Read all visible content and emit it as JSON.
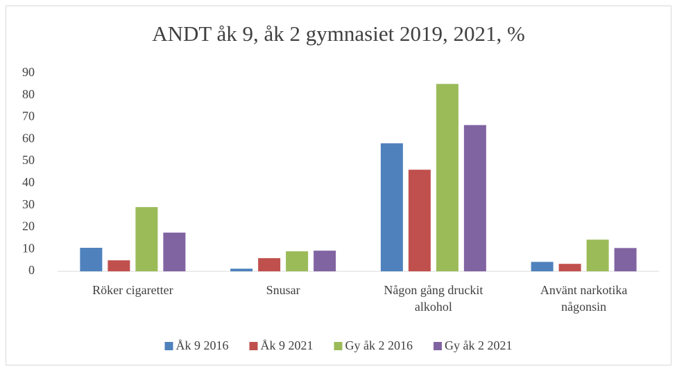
{
  "chart_data": {
    "type": "bar",
    "title": "ANDT åk 9, åk 2 gymnasiet 2019, 2021, %",
    "categories": [
      "Röker cigaretter",
      "Snusar",
      "Någon gång druckit alkohol",
      "Använt narkotika någonsin"
    ],
    "series": [
      {
        "name": "Åk 9 2016",
        "color": "#4f81bd",
        "values": [
          10.7,
          1.2,
          58.2,
          4.3
        ]
      },
      {
        "name": "Åk 9 2021",
        "color": "#c0504d",
        "values": [
          5,
          6,
          46.2,
          3.4
        ]
      },
      {
        "name": "Gy åk 2 2016",
        "color": "#9bbb59",
        "values": [
          29.2,
          9.1,
          85.2,
          14.4
        ]
      },
      {
        "name": "Gy åk 2 2021",
        "color": "#8064a2",
        "values": [
          17.6,
          9.4,
          66.5,
          10.6
        ]
      }
    ],
    "ylim": [
      0,
      90
    ],
    "yticks": [
      0,
      10,
      20,
      30,
      40,
      50,
      60,
      70,
      80,
      90
    ],
    "grid": false,
    "legend": "bottom"
  }
}
